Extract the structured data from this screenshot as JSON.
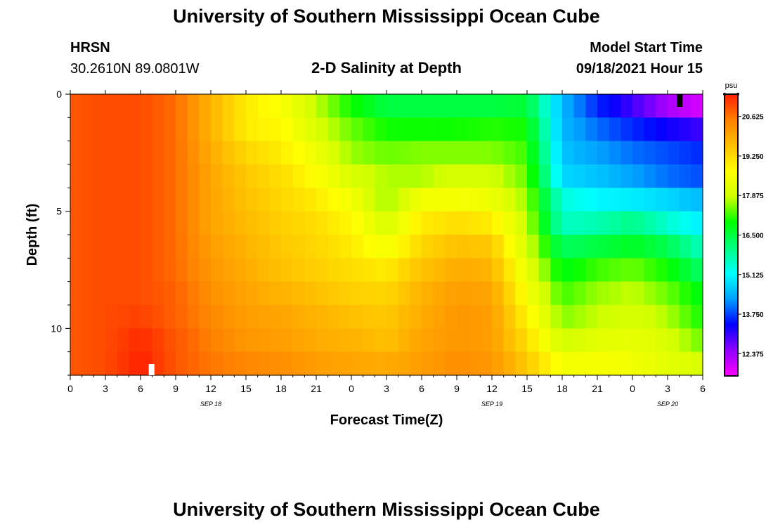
{
  "header": {
    "title": "University of Southern Mississippi Ocean Cube",
    "station": "HRSN",
    "coordinates": "30.2610N  89.0801W",
    "product": "2-D Salinity at Depth",
    "model_start_label": "Model Start Time",
    "model_start_value": "09/18/2021 Hour 15"
  },
  "footer": {
    "title": "University of Southern Mississippi Ocean Cube"
  },
  "chart_data": {
    "type": "heatmap",
    "title": "2-D Salinity at Depth",
    "xlabel": "Forecast Time(Z)",
    "ylabel": "Depth (ft)",
    "x_unit": "hours from Sep 18 00Z",
    "x_range": [
      0,
      54
    ],
    "y_range": [
      0,
      12
    ],
    "x_tick_values": [
      0,
      3,
      6,
      9,
      12,
      15,
      18,
      21,
      24,
      27,
      30,
      33,
      36,
      39,
      42,
      45,
      48,
      51,
      54
    ],
    "x_tick_labels": [
      "0",
      "3",
      "6",
      "9",
      "12",
      "15",
      "18",
      "21",
      "0",
      "3",
      "6",
      "9",
      "12",
      "15",
      "18",
      "21",
      "0",
      "3",
      "6"
    ],
    "date_labels": [
      {
        "label": "SEP 18",
        "x": 12
      },
      {
        "label": "SEP 19",
        "x": 36
      },
      {
        "label": "SEP 20",
        "x": 51
      }
    ],
    "y_tick_values": [
      0,
      5,
      10
    ],
    "y_tick_labels": [
      "0",
      "5",
      "10"
    ],
    "depth_levels": [
      0,
      1,
      2,
      3,
      4,
      5,
      6,
      7,
      8,
      9,
      10,
      11
    ],
    "colorbar": {
      "unit": "psu",
      "min": 11.6,
      "max": 21.4,
      "tick_labels": [
        "20.625",
        "19.250",
        "17.875",
        "16.500",
        "15.125",
        "13.750",
        "12.375"
      ],
      "tick_values": [
        20.625,
        19.25,
        17.875,
        16.5,
        15.125,
        13.75,
        12.375
      ],
      "colors": [
        "#ff00ff",
        "#9000ff",
        "#0000ff",
        "#00a0ff",
        "#00ffff",
        "#00ff80",
        "#00ff00",
        "#d0ff00",
        "#ffff00",
        "#ffc000",
        "#ff8000",
        "#ff2000"
      ]
    },
    "time_anchors": [
      0,
      3,
      6,
      9,
      12,
      15,
      18,
      21,
      24,
      27,
      30,
      33,
      36,
      39,
      42,
      45,
      48,
      51,
      54
    ],
    "salinity_grid": [
      [
        20.9,
        21.0,
        21.0,
        20.7,
        19.8,
        19.0,
        18.6,
        17.8,
        17.0,
        16.5,
        16.5,
        16.5,
        16.5,
        16.6,
        14.5,
        13.6,
        13.0,
        12.3,
        11.9
      ],
      [
        20.9,
        21.0,
        21.0,
        20.7,
        19.8,
        19.0,
        18.8,
        18.0,
        17.4,
        17.0,
        17.0,
        17.0,
        17.1,
        17.0,
        14.5,
        14.0,
        13.6,
        13.3,
        13.0
      ],
      [
        20.9,
        21.0,
        21.0,
        20.7,
        19.9,
        19.3,
        19.0,
        18.4,
        17.6,
        17.4,
        17.5,
        17.5,
        17.5,
        17.2,
        14.6,
        14.3,
        14.0,
        13.8,
        13.6
      ],
      [
        20.9,
        21.0,
        21.0,
        20.7,
        20.0,
        19.5,
        19.2,
        18.7,
        18.0,
        17.7,
        17.7,
        18.0,
        17.9,
        17.4,
        14.8,
        14.6,
        14.3,
        14.0,
        13.8
      ],
      [
        20.9,
        21.0,
        21.0,
        20.7,
        20.0,
        19.6,
        19.3,
        19.0,
        18.5,
        17.6,
        18.5,
        18.6,
        18.4,
        17.6,
        15.4,
        15.1,
        15.0,
        14.8,
        14.5
      ],
      [
        20.9,
        21.0,
        21.0,
        20.7,
        20.0,
        19.7,
        19.4,
        19.2,
        18.8,
        18.0,
        19.0,
        19.2,
        19.0,
        17.8,
        15.6,
        15.7,
        16.0,
        15.5,
        15.0
      ],
      [
        20.9,
        21.0,
        21.0,
        20.7,
        20.1,
        19.8,
        19.5,
        19.3,
        19.0,
        18.5,
        19.3,
        19.6,
        19.5,
        18.0,
        16.3,
        16.5,
        16.7,
        16.4,
        15.6
      ],
      [
        20.9,
        21.0,
        21.0,
        20.7,
        20.2,
        19.9,
        19.6,
        19.4,
        19.2,
        19.0,
        19.6,
        19.9,
        19.8,
        18.3,
        16.8,
        17.2,
        17.4,
        17.0,
        16.2
      ],
      [
        20.9,
        21.0,
        21.0,
        20.8,
        20.3,
        20.0,
        19.8,
        19.6,
        19.4,
        19.3,
        19.8,
        20.1,
        20.0,
        18.6,
        17.2,
        17.6,
        17.8,
        17.4,
        16.8
      ],
      [
        20.9,
        21.0,
        21.1,
        20.8,
        20.4,
        20.1,
        20.0,
        19.8,
        19.6,
        19.5,
        19.9,
        20.2,
        20.1,
        18.9,
        17.5,
        17.8,
        18.0,
        17.7,
        17.0
      ],
      [
        20.9,
        21.0,
        21.3,
        20.9,
        20.5,
        20.2,
        20.1,
        19.9,
        19.8,
        19.6,
        20.0,
        20.2,
        20.1,
        19.2,
        17.9,
        18.2,
        18.3,
        18.0,
        17.4
      ],
      [
        20.9,
        21.0,
        21.4,
        20.9,
        20.6,
        20.4,
        20.3,
        20.1,
        20.0,
        19.9,
        20.1,
        20.3,
        20.2,
        19.5,
        18.5,
        18.6,
        18.5,
        18.2,
        18.0
      ]
    ]
  }
}
